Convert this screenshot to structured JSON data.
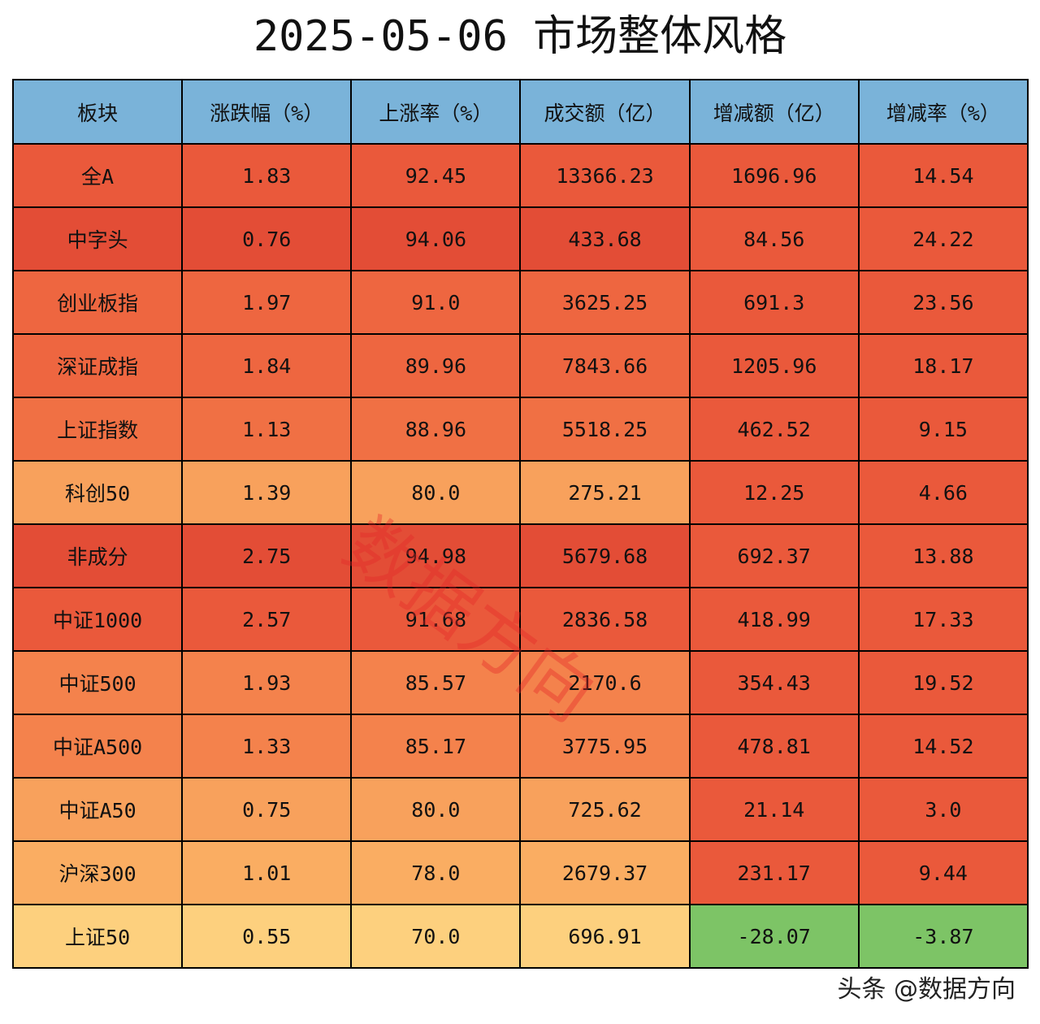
{
  "title": "2025-05-06 市场整体风格",
  "watermark": "数据方向",
  "footer": "头条 @数据方向",
  "chart_data": {
    "type": "table",
    "title": "2025-05-06 市场整体风格",
    "columns": [
      "板块",
      "涨跌幅（%）",
      "上涨率（%）",
      "成交额（亿）",
      "增减额（亿）",
      "增减率（%）"
    ],
    "rows": [
      {
        "cells": [
          "全A",
          "1.83",
          "92.45",
          "13366.23",
          "1696.96",
          "14.54"
        ],
        "colors": [
          "#ea593b",
          "#ea593b",
          "#ea593b",
          "#ea593b",
          "#ea593b",
          "#ea593b"
        ]
      },
      {
        "cells": [
          "中字头",
          "0.76",
          "94.06",
          "433.68",
          "84.56",
          "24.22"
        ],
        "colors": [
          "#e34d36",
          "#e34d36",
          "#e34d36",
          "#e34d36",
          "#ea593b",
          "#ea593b"
        ]
      },
      {
        "cells": [
          "创业板指",
          "1.97",
          "91.0",
          "3625.25",
          "691.3",
          "23.56"
        ],
        "colors": [
          "#ee6640",
          "#ee6640",
          "#ee6640",
          "#ee6640",
          "#ea593b",
          "#ea593b"
        ]
      },
      {
        "cells": [
          "深证成指",
          "1.84",
          "89.96",
          "7843.66",
          "1205.96",
          "18.17"
        ],
        "colors": [
          "#ee6640",
          "#ee6640",
          "#ee6640",
          "#ee6640",
          "#ea593b",
          "#ea593b"
        ]
      },
      {
        "cells": [
          "上证指数",
          "1.13",
          "88.96",
          "5518.25",
          "462.52",
          "9.15"
        ],
        "colors": [
          "#f07044",
          "#f07044",
          "#f07044",
          "#f07044",
          "#ea593b",
          "#ea593b"
        ]
      },
      {
        "cells": [
          "科创50",
          "1.39",
          "80.0",
          "275.21",
          "12.25",
          "4.66"
        ],
        "colors": [
          "#f8a15c",
          "#f8a15c",
          "#f8a15c",
          "#f8a15c",
          "#ea593b",
          "#ea593b"
        ]
      },
      {
        "cells": [
          "非成分",
          "2.75",
          "94.98",
          "5679.68",
          "692.37",
          "13.88"
        ],
        "colors": [
          "#e34d36",
          "#e34d36",
          "#e34d36",
          "#e34d36",
          "#ea593b",
          "#ea593b"
        ]
      },
      {
        "cells": [
          "中证1000",
          "2.57",
          "91.68",
          "2836.58",
          "418.99",
          "17.33"
        ],
        "colors": [
          "#ea593b",
          "#ea593b",
          "#ea593b",
          "#ea593b",
          "#ea593b",
          "#ea593b"
        ]
      },
      {
        "cells": [
          "中证500",
          "1.93",
          "85.57",
          "2170.6",
          "354.43",
          "19.52"
        ],
        "colors": [
          "#f4824c",
          "#f4824c",
          "#f4824c",
          "#f4824c",
          "#ea593b",
          "#ea593b"
        ]
      },
      {
        "cells": [
          "中证A500",
          "1.33",
          "85.17",
          "3775.95",
          "478.81",
          "14.52"
        ],
        "colors": [
          "#f4824c",
          "#f4824c",
          "#f4824c",
          "#f4824c",
          "#ea593b",
          "#ea593b"
        ]
      },
      {
        "cells": [
          "中证A50",
          "0.75",
          "80.0",
          "725.62",
          "21.14",
          "3.0"
        ],
        "colors": [
          "#f8a15c",
          "#f8a15c",
          "#f8a15c",
          "#f8a15c",
          "#ea593b",
          "#ea593b"
        ]
      },
      {
        "cells": [
          "沪深300",
          "1.01",
          "78.0",
          "2679.37",
          "231.17",
          "9.44"
        ],
        "colors": [
          "#faad62",
          "#faad62",
          "#faad62",
          "#faad62",
          "#ea593b",
          "#ea593b"
        ]
      },
      {
        "cells": [
          "上证50",
          "0.55",
          "70.0",
          "696.91",
          "-28.07",
          "-3.87"
        ],
        "colors": [
          "#fdd07e",
          "#fdd07e",
          "#fdd07e",
          "#fdd07e",
          "#7dc466",
          "#7dc466"
        ]
      }
    ],
    "header_color": "#7ab3d9"
  }
}
